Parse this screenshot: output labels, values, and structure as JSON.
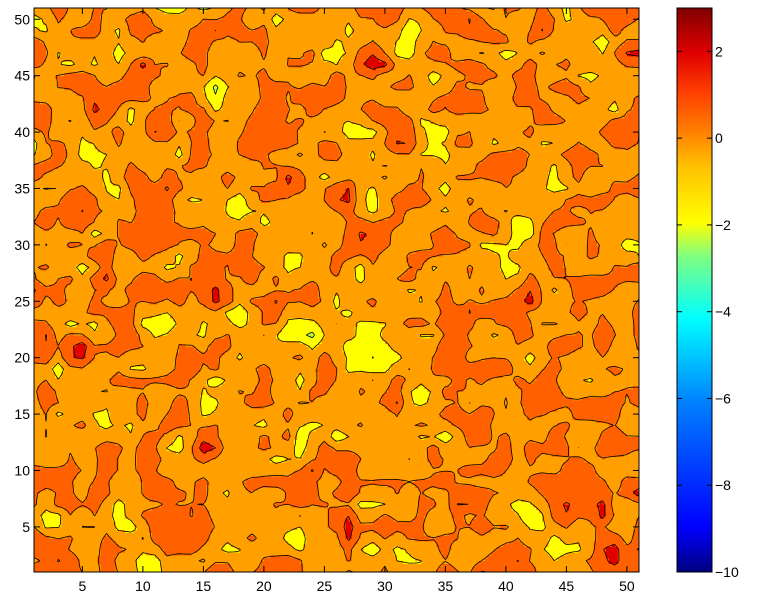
{
  "chart_data": {
    "type": "heatmap",
    "subtype": "filled-contour",
    "title": "",
    "xlabel": "",
    "ylabel": "",
    "xlim": [
      1,
      51
    ],
    "ylim": [
      1,
      51
    ],
    "grid": false,
    "x_ticks": [
      5,
      10,
      15,
      20,
      25,
      30,
      35,
      40,
      45,
      50
    ],
    "y_ticks": [
      5,
      10,
      15,
      20,
      25,
      30,
      35,
      40,
      45,
      50
    ],
    "x_tick_labels": [
      "5",
      "10",
      "15",
      "20",
      "25",
      "30",
      "35",
      "40",
      "45",
      "50"
    ],
    "y_tick_labels": [
      "5",
      "10",
      "15",
      "20",
      "25",
      "30",
      "35",
      "40",
      "45",
      "50"
    ],
    "grid_size": [
      51,
      51
    ],
    "value_range": [
      -10,
      3
    ],
    "contour_levels": [
      -10,
      -9,
      -8,
      -7,
      -6,
      -5,
      -4,
      -3,
      -2,
      -1,
      0,
      1,
      2,
      3
    ],
    "colormap": "jet",
    "level_colors": [
      "#000090",
      "#0000d0",
      "#0020ff",
      "#0060ff",
      "#00a0ff",
      "#00e0ff",
      "#40ffc0",
      "#a0ff60",
      "#ffff00",
      "#ffa000",
      "#ff6000",
      "#e00000",
      "#a00000"
    ],
    "contour_line_color": "#000000",
    "colorbar": {
      "limits": [
        -10,
        3
      ],
      "ticks": [
        -10,
        -8,
        -6,
        -4,
        -2,
        0,
        2
      ],
      "tick_labels": [
        "−10",
        "−8",
        "−6",
        "−4",
        "−2",
        "0",
        "2"
      ],
      "position": "right"
    }
  }
}
